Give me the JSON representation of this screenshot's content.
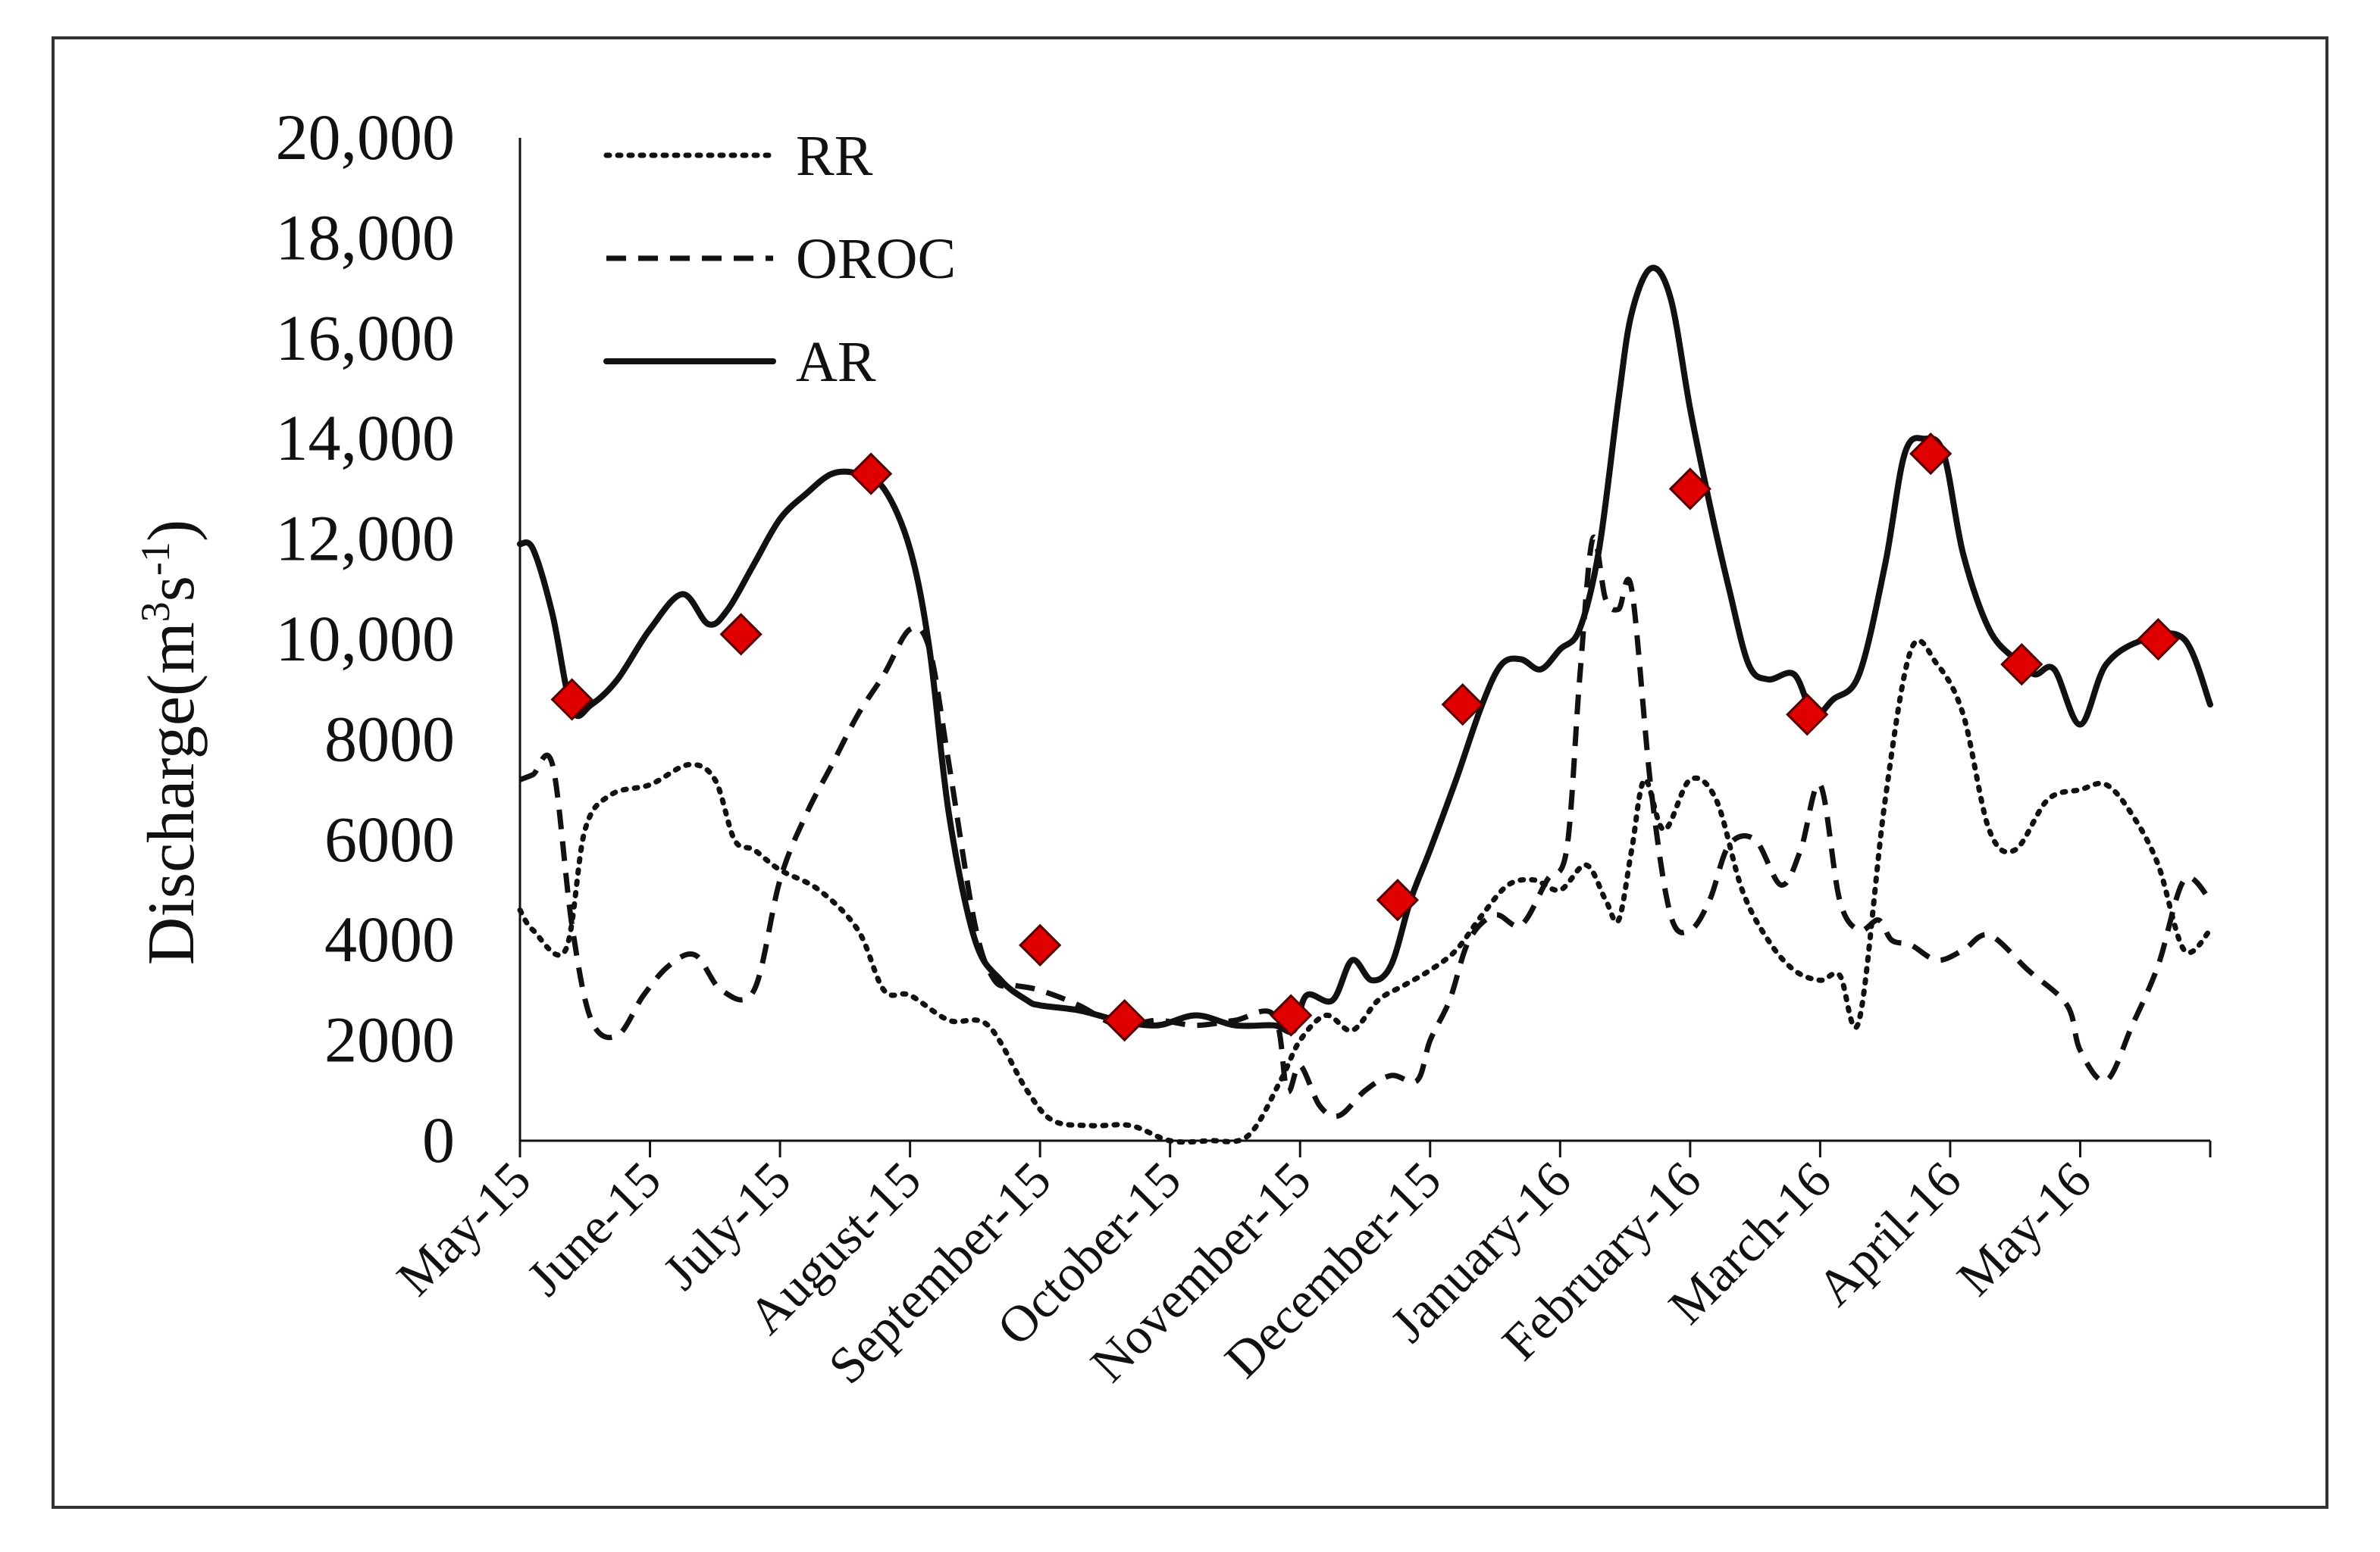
{
  "chart_data": {
    "type": "line",
    "title": "",
    "xlabel": "",
    "ylabel": "Discharge(m³s⁻¹)",
    "ylabel_parts": {
      "main": "Discharge(m",
      "sup1": "3",
      "mid": "s",
      "sup2": "-1",
      "end": ")"
    },
    "ylim": [
      0,
      20000
    ],
    "xlim": [
      0,
      13
    ],
    "y_ticks": [
      {
        "value": 0,
        "label": "0"
      },
      {
        "value": 2000,
        "label": "2000"
      },
      {
        "value": 4000,
        "label": "4000"
      },
      {
        "value": 6000,
        "label": "6000"
      },
      {
        "value": 8000,
        "label": "8000"
      },
      {
        "value": 10000,
        "label": "10,000"
      },
      {
        "value": 12000,
        "label": "12,000"
      },
      {
        "value": 14000,
        "label": "14,000"
      },
      {
        "value": 16000,
        "label": "16,000"
      },
      {
        "value": 18000,
        "label": "18,000"
      },
      {
        "value": 20000,
        "label": "20,000"
      }
    ],
    "x_ticks": [
      "May-15",
      "June-15",
      "July-15",
      "August-15",
      "September-15",
      "October-15",
      "November-15",
      "December-15",
      "January-16",
      "February-16",
      "March-16",
      "April-16",
      "May-16"
    ],
    "legend": {
      "position": "top-left"
    },
    "series": [
      {
        "name": "RR",
        "style": "dotted",
        "x": [
          0,
          0.1,
          0.35,
          0.5,
          0.7,
          1.0,
          1.3,
          1.5,
          1.65,
          1.8,
          2.0,
          2.3,
          2.6,
          2.8,
          3.0,
          3.3,
          3.6,
          3.9,
          4.1,
          4.4,
          4.7,
          5.0,
          5.3,
          5.6,
          5.85,
          6.0,
          6.2,
          6.4,
          6.6,
          6.8,
          7.0,
          7.2,
          7.4,
          7.6,
          7.8,
          8.0,
          8.2,
          8.35,
          8.45,
          8.55,
          8.65,
          8.8,
          9.0,
          9.2,
          9.4,
          9.6,
          9.8,
          10.0,
          10.15,
          10.3,
          10.5,
          10.7,
          10.9,
          11.1,
          11.3,
          11.5,
          11.75,
          12.0,
          12.2,
          12.4,
          12.6,
          12.8,
          13.0
        ],
        "y": [
          4600,
          4200,
          3800,
          6200,
          6900,
          7100,
          7500,
          7200,
          6000,
          5800,
          5400,
          5000,
          4200,
          3000,
          2900,
          2400,
          2300,
          1000,
          400,
          300,
          300,
          0,
          0,
          100,
          1200,
          2000,
          2500,
          2200,
          2800,
          3100,
          3400,
          3800,
          4500,
          5100,
          5200,
          5000,
          5500,
          4800,
          4400,
          5800,
          7200,
          6200,
          7200,
          6800,
          5000,
          4000,
          3400,
          3200,
          3300,
          2400,
          6800,
          9800,
          9500,
          8500,
          6200,
          5800,
          6800,
          7000,
          7100,
          6500,
          5500,
          3800,
          4200
        ]
      },
      {
        "name": "OROC",
        "style": "dashed",
        "x": [
          0,
          0.1,
          0.25,
          0.4,
          0.55,
          0.75,
          0.95,
          1.15,
          1.35,
          1.55,
          1.8,
          2.0,
          2.2,
          2.4,
          2.6,
          2.8,
          3.0,
          3.15,
          3.3,
          3.5,
          3.65,
          3.8,
          4.0,
          4.3,
          4.6,
          4.9,
          5.2,
          5.5,
          5.8,
          5.9,
          6.0,
          6.15,
          6.3,
          6.5,
          6.7,
          6.9,
          7.0,
          7.15,
          7.3,
          7.5,
          7.7,
          7.9,
          8.05,
          8.15,
          8.25,
          8.35,
          8.45,
          8.55,
          8.7,
          8.85,
          9.0,
          9.15,
          9.3,
          9.5,
          9.7,
          9.85,
          10.0,
          10.15,
          10.3,
          10.45,
          10.55,
          10.7,
          10.9,
          11.1,
          11.3,
          11.6,
          11.9,
          12.0,
          12.2,
          12.4,
          12.6,
          12.8,
          13.0
        ],
        "y": [
          7200,
          7300,
          7500,
          4300,
          2400,
          2100,
          2900,
          3500,
          3700,
          3000,
          3000,
          5200,
          6500,
          7500,
          8500,
          9300,
          10200,
          9800,
          7500,
          4300,
          3200,
          3100,
          3000,
          2700,
          2300,
          2400,
          2300,
          2400,
          2500,
          1000,
          1500,
          700,
          500,
          1000,
          1300,
          1200,
          2000,
          2800,
          4000,
          4500,
          4300,
          5200,
          5800,
          9200,
          12000,
          10800,
          10600,
          11000,
          7000,
          4500,
          4200,
          4800,
          5900,
          6000,
          5100,
          5800,
          7100,
          4800,
          4200,
          4400,
          4000,
          3900,
          3600,
          3800,
          4100,
          3400,
          2700,
          1800,
          1200,
          2300,
          3500,
          5200,
          4800
        ]
      },
      {
        "name": "AR",
        "style": "solid",
        "x": [
          0,
          0.1,
          0.25,
          0.4,
          0.55,
          0.75,
          1.0,
          1.25,
          1.45,
          1.6,
          1.8,
          2.0,
          2.2,
          2.4,
          2.6,
          2.8,
          3.0,
          3.15,
          3.3,
          3.5,
          3.7,
          3.9,
          4.0,
          4.3,
          4.6,
          4.9,
          5.2,
          5.5,
          5.8,
          5.95,
          6.05,
          6.25,
          6.4,
          6.55,
          6.7,
          6.85,
          7.0,
          7.2,
          7.4,
          7.55,
          7.7,
          7.85,
          8.0,
          8.15,
          8.3,
          8.45,
          8.55,
          8.7,
          8.85,
          9.0,
          9.15,
          9.3,
          9.45,
          9.6,
          9.8,
          9.95,
          10.1,
          10.3,
          10.5,
          10.65,
          10.8,
          10.95,
          11.1,
          11.3,
          11.5,
          11.65,
          11.8,
          12.0,
          12.2,
          12.5,
          12.8,
          13.0
        ],
        "y": [
          11900,
          11800,
          10500,
          8600,
          8700,
          9200,
          10200,
          10900,
          10300,
          10600,
          11500,
          12400,
          12900,
          13300,
          13300,
          13000,
          11800,
          9800,
          6500,
          4000,
          3200,
          2800,
          2700,
          2600,
          2400,
          2300,
          2500,
          2300,
          2300,
          2200,
          2900,
          2800,
          3600,
          3200,
          3500,
          4800,
          5800,
          7200,
          8700,
          9500,
          9600,
          9400,
          9800,
          10200,
          11800,
          14800,
          16500,
          17400,
          16800,
          14600,
          12700,
          11000,
          9500,
          9200,
          9300,
          8500,
          8800,
          9300,
          11500,
          13700,
          14000,
          13700,
          11700,
          10200,
          9600,
          9300,
          9400,
          8300,
          9500,
          10000,
          10000,
          8700
        ]
      }
    ],
    "markers": {
      "shape": "diamond",
      "color": "#e00000",
      "edge_color": "#550000",
      "series": "AR",
      "x": [
        0.4,
        1.7,
        2.7,
        4.0,
        4.65,
        5.93,
        6.75,
        7.25,
        9.0,
        9.9,
        10.85,
        11.55,
        12.6
      ],
      "y": [
        8800,
        10100,
        13300,
        3900,
        2400,
        2500,
        4800,
        8700,
        13000,
        8500,
        13700,
        9500,
        10000
      ]
    }
  }
}
